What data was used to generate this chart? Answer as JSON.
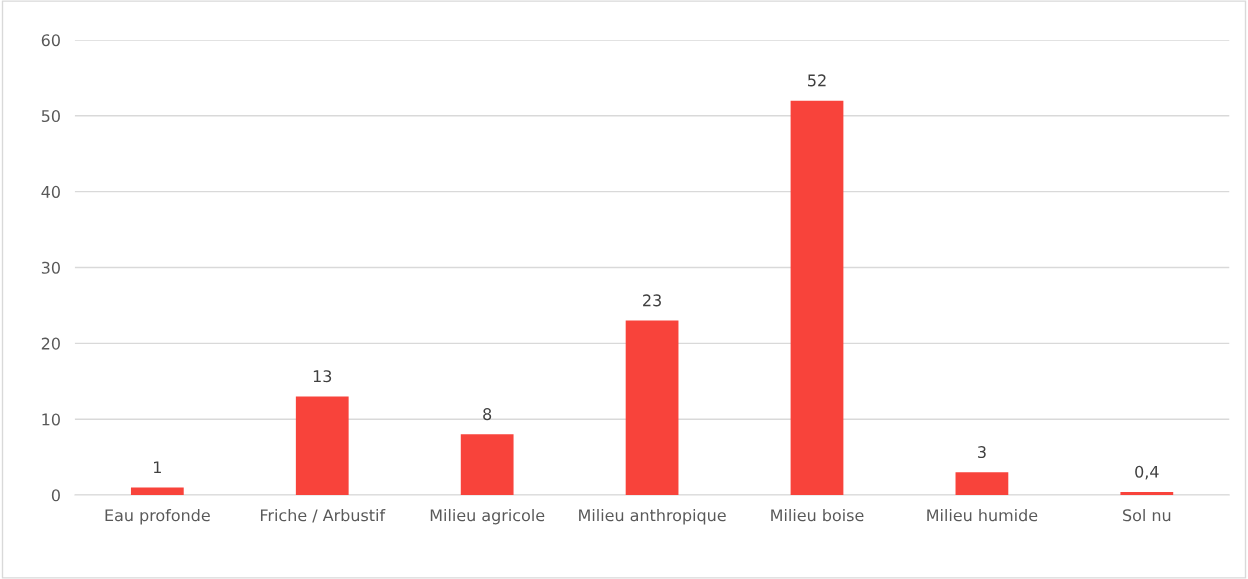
{
  "chart_data": {
    "type": "bar",
    "categories": [
      "Eau profonde",
      "Friche / Arbustif",
      "Milieu agricole",
      "Milieu anthropique",
      "Milieu boise",
      "Milieu humide",
      "Sol nu"
    ],
    "values": [
      1,
      13,
      8,
      23,
      52,
      3,
      0.4
    ],
    "value_labels": [
      "1",
      "13",
      "8",
      "23",
      "52",
      "3",
      "0,4"
    ],
    "color": "#f8433b",
    "ylim": [
      0,
      60
    ],
    "yticks": [
      0,
      10,
      20,
      30,
      40,
      50,
      60
    ],
    "grid": "y",
    "legend": false
  }
}
